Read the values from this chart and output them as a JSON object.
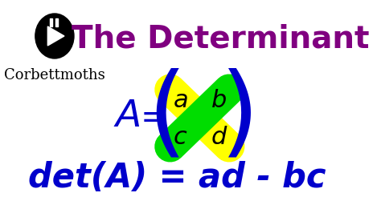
{
  "bg_color": "#ffffff",
  "title_text": "The Determinant",
  "title_color": "#800080",
  "title_fontsize": 28,
  "corbett_text": "Corbettmοths",
  "corbett_color": "#000000",
  "corbett_fontsize": 13,
  "formula_color": "#0000cc",
  "formula_fontsize": 32,
  "matrix_letters": [
    "a",
    "b",
    "c",
    "d"
  ],
  "yellow_color": "#ffff00",
  "green_color": "#00dd00",
  "det_text": "det(A) = ad - bc",
  "det_color": "#0000cc",
  "det_fontsize": 30
}
